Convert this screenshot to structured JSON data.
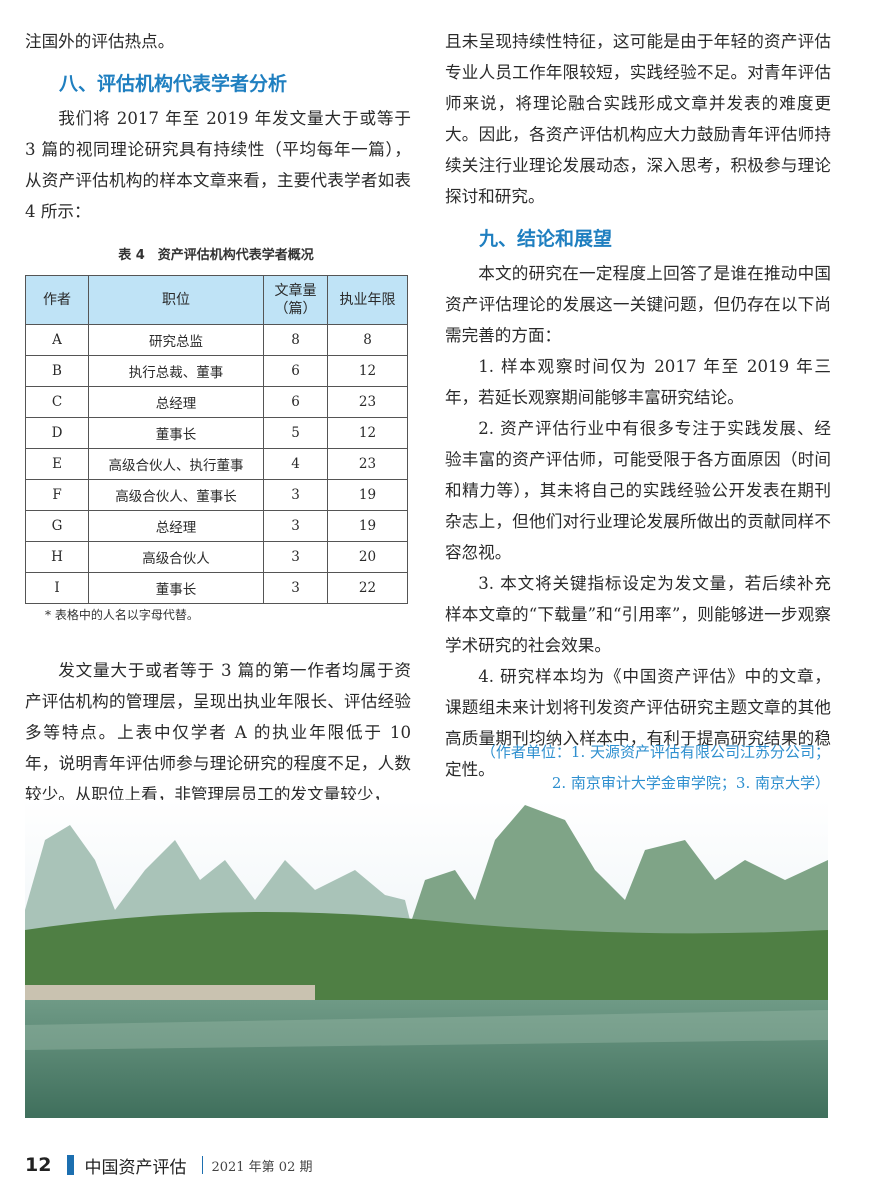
{
  "left": {
    "p0": "注国外的评估热点。",
    "h8": "八、评估机构代表学者分析",
    "p1": "我们将 2017 年至 2019 年发文量大于或等于 3 篇的视同理论研究具有持续性（平均每年一篇），从资产评估机构的样本文章来看，主要代表学者如表 4 所示：",
    "p2": "发文量大于或者等于 3 篇的第一作者均属于资产评估机构的管理层，呈现出执业年限长、评估经验多等特点。上表中仅学者 A 的执业年限低于 10 年，说明青年评估师参与理论研究的程度不足，人数较少。从职位上看，非管理层员工的发文量较少，"
  },
  "table": {
    "caption": "表 4　资产评估机构代表学者概况",
    "headers": [
      "作者",
      "职位",
      "文章量（篇）",
      "执业年限"
    ],
    "rows": [
      [
        "A",
        "研究总监",
        "8",
        "8"
      ],
      [
        "B",
        "执行总裁、董事",
        "6",
        "12"
      ],
      [
        "C",
        "总经理",
        "6",
        "23"
      ],
      [
        "D",
        "董事长",
        "5",
        "12"
      ],
      [
        "E",
        "高级合伙人、执行董事",
        "4",
        "23"
      ],
      [
        "F",
        "高级合伙人、董事长",
        "3",
        "19"
      ],
      [
        "G",
        "总经理",
        "3",
        "19"
      ],
      [
        "H",
        "高级合伙人",
        "3",
        "20"
      ],
      [
        "I",
        "董事长",
        "3",
        "22"
      ]
    ],
    "note": "* 表格中的人名以字母代替。"
  },
  "right": {
    "p0": "且未呈现持续性特征，这可能是由于年轻的资产评估专业人员工作年限较短，实践经验不足。对青年评估师来说，将理论融合实践形成文章并发表的难度更大。因此，各资产评估机构应大力鼓励青年评估师持续关注行业理论发展动态，深入思考，积极参与理论探讨和研究。",
    "h9": "九、结论和展望",
    "p1": "本文的研究在一定程度上回答了是谁在推动中国资产评估理论的发展这一关键问题，但仍存在以下尚需完善的方面：",
    "items": [
      "1. 样本观察时间仅为 2017 年至 2019 年三年，若延长观察期间能够丰富研究结论。",
      "2. 资产评估行业中有很多专注于实践发展、经验丰富的资产评估师，可能受限于各方面原因（时间和精力等），其未将自己的实践经验公开发表在期刊杂志上，但他们对行业理论发展所做出的贡献同样不容忽视。",
      "3. 本文将关键指标设定为发文量，若后续补充样本文章的“下载量”和“引用率”，则能够进一步观察学术研究的社会效果。",
      "4. 研究样本均为《中国资产评估》中的文章，课题组未来计划将刊发资产评估研究主题文章的其他高质量期刊均纳入样本中，有利于提高研究结果的稳定性。"
    ],
    "aff1": "（作者单位：1. 天源资产评估有限公司江苏分公司；",
    "aff2": "2. 南京审计大学金审学院；3. 南京大学）"
  },
  "footer": {
    "page": "12",
    "magazine": "中国资产评估",
    "issue": "2021 年第 02 期"
  },
  "colors": {
    "heading": "#1f7fc0",
    "table_header": "#bfe3f6",
    "footer_bar": "#1c6fb0"
  }
}
